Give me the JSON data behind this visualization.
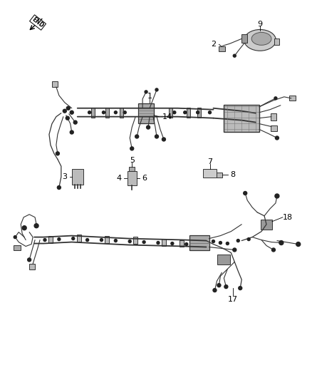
{
  "bg_color": "#ffffff",
  "line_color": "#444444",
  "text_color": "#000000",
  "lw_main": 1.3,
  "lw_thin": 0.8,
  "lw_wire": 0.9
}
